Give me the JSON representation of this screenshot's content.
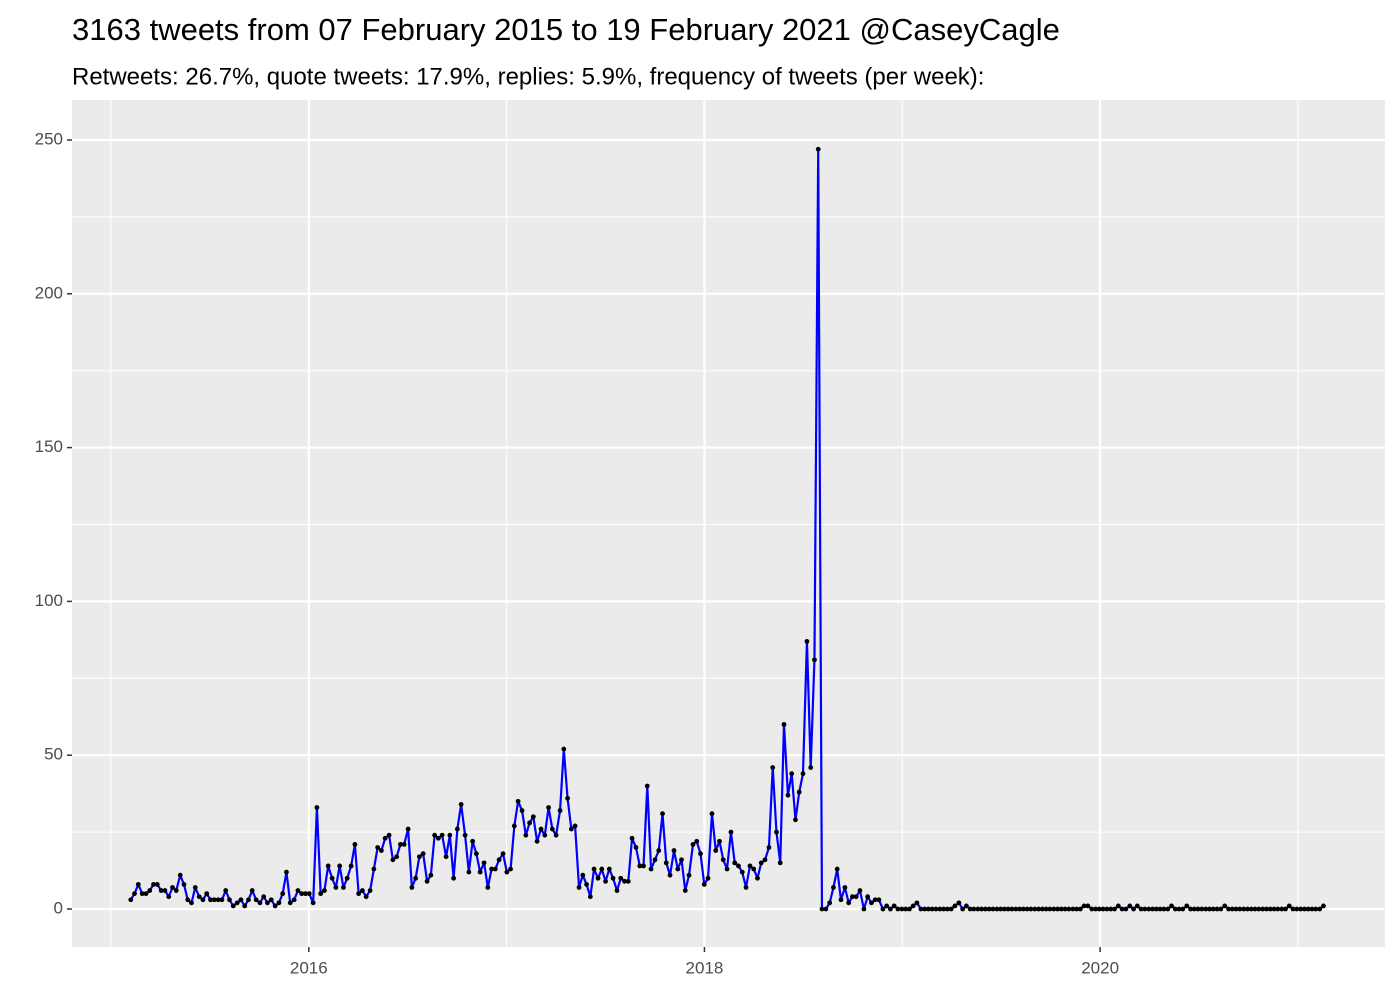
{
  "chart_data": {
    "type": "line",
    "title": "3163 tweets from 07 February 2015 to 19 February 2021 @CaseyCagle",
    "subtitle": "Retweets: 26.7%, quote tweets: 17.9%, replies: 5.9%, frequency of tweets (per week):",
    "x": [
      2015.1,
      2015.119,
      2015.138,
      2015.158,
      2015.177,
      2015.196,
      2015.215,
      2015.234,
      2015.254,
      2015.273,
      2015.292,
      2015.311,
      2015.33,
      2015.35,
      2015.369,
      2015.388,
      2015.407,
      2015.426,
      2015.446,
      2015.465,
      2015.484,
      2015.503,
      2015.522,
      2015.542,
      2015.561,
      2015.58,
      2015.599,
      2015.618,
      2015.638,
      2015.657,
      2015.676,
      2015.695,
      2015.714,
      2015.734,
      2015.753,
      2015.772,
      2015.791,
      2015.81,
      2015.83,
      2015.849,
      2015.868,
      2015.887,
      2015.906,
      2015.926,
      2015.945,
      2015.964,
      2015.983,
      2016.002,
      2016.022,
      2016.041,
      2016.06,
      2016.079,
      2016.098,
      2016.118,
      2016.137,
      2016.156,
      2016.175,
      2016.194,
      2016.214,
      2016.233,
      2016.252,
      2016.271,
      2016.29,
      2016.31,
      2016.329,
      2016.348,
      2016.367,
      2016.386,
      2016.406,
      2016.425,
      2016.444,
      2016.463,
      2016.482,
      2016.502,
      2016.521,
      2016.54,
      2016.559,
      2016.578,
      2016.598,
      2016.617,
      2016.636,
      2016.655,
      2016.674,
      2016.694,
      2016.713,
      2016.732,
      2016.751,
      2016.77,
      2016.79,
      2016.809,
      2016.828,
      2016.847,
      2016.866,
      2016.886,
      2016.905,
      2016.924,
      2016.943,
      2016.962,
      2016.982,
      2017.001,
      2017.02,
      2017.039,
      2017.058,
      2017.078,
      2017.097,
      2017.116,
      2017.135,
      2017.154,
      2017.174,
      2017.193,
      2017.212,
      2017.231,
      2017.25,
      2017.27,
      2017.289,
      2017.308,
      2017.327,
      2017.346,
      2017.366,
      2017.385,
      2017.404,
      2017.423,
      2017.442,
      2017.462,
      2017.481,
      2017.5,
      2017.519,
      2017.538,
      2017.558,
      2017.577,
      2017.596,
      2017.615,
      2017.634,
      2017.654,
      2017.673,
      2017.692,
      2017.711,
      2017.73,
      2017.75,
      2017.769,
      2017.788,
      2017.807,
      2017.826,
      2017.846,
      2017.865,
      2017.884,
      2017.903,
      2017.922,
      2017.942,
      2017.961,
      2017.98,
      2017.999,
      2018.018,
      2018.038,
      2018.057,
      2018.076,
      2018.095,
      2018.114,
      2018.134,
      2018.153,
      2018.172,
      2018.191,
      2018.21,
      2018.23,
      2018.249,
      2018.268,
      2018.287,
      2018.306,
      2018.326,
      2018.345,
      2018.364,
      2018.383,
      2018.402,
      2018.422,
      2018.441,
      2018.46,
      2018.479,
      2018.498,
      2018.518,
      2018.537,
      2018.556,
      2018.575,
      2018.594,
      2018.614,
      2018.633,
      2018.652,
      2018.671,
      2018.69,
      2018.71,
      2018.729,
      2018.748,
      2018.767,
      2018.786,
      2018.806,
      2018.825,
      2018.844,
      2018.863,
      2018.882,
      2018.902,
      2018.921,
      2018.94,
      2018.959,
      2018.978,
      2018.998,
      2019.017,
      2019.036,
      2019.055,
      2019.074,
      2019.094,
      2019.113,
      2019.132,
      2019.151,
      2019.17,
      2019.19,
      2019.209,
      2019.228,
      2019.247,
      2019.266,
      2019.286,
      2019.305,
      2019.324,
      2019.343,
      2019.362,
      2019.382,
      2019.401,
      2019.42,
      2019.439,
      2019.458,
      2019.478,
      2019.497,
      2019.516,
      2019.535,
      2019.554,
      2019.574,
      2019.593,
      2019.612,
      2019.631,
      2019.65,
      2019.67,
      2019.689,
      2019.708,
      2019.727,
      2019.746,
      2019.766,
      2019.785,
      2019.804,
      2019.823,
      2019.842,
      2019.862,
      2019.881,
      2019.9,
      2019.919,
      2019.938,
      2019.958,
      2019.977,
      2019.996,
      2020.015,
      2020.034,
      2020.054,
      2020.073,
      2020.092,
      2020.111,
      2020.13,
      2020.15,
      2020.169,
      2020.188,
      2020.207,
      2020.226,
      2020.246,
      2020.265,
      2020.284,
      2020.303,
      2020.322,
      2020.342,
      2020.361,
      2020.38,
      2020.399,
      2020.418,
      2020.438,
      2020.457,
      2020.476,
      2020.495,
      2020.514,
      2020.534,
      2020.553,
      2020.572,
      2020.591,
      2020.61,
      2020.63,
      2020.649,
      2020.668,
      2020.687,
      2020.706,
      2020.726,
      2020.745,
      2020.764,
      2020.783,
      2020.802,
      2020.822,
      2020.841,
      2020.86,
      2020.879,
      2020.898,
      2020.918,
      2020.937,
      2020.956,
      2020.975,
      2020.994,
      2021.014,
      2021.033,
      2021.052,
      2021.071,
      2021.09,
      2021.11,
      2021.129
    ],
    "series": [
      {
        "color": "#0000ff",
        "marker_color": "#000000",
        "values": [
          3,
          5,
          8,
          5,
          5,
          6,
          8,
          8,
          6,
          6,
          4,
          7,
          6,
          11,
          8,
          3,
          2,
          7,
          4,
          3,
          5,
          3,
          3,
          3,
          3,
          6,
          3,
          1,
          2,
          3,
          1,
          3,
          6,
          3,
          2,
          4,
          2,
          3,
          1,
          2,
          5,
          12,
          2,
          3,
          6,
          5,
          5,
          5,
          2,
          33,
          5,
          6,
          14,
          10,
          7,
          14,
          7,
          10,
          14,
          21,
          5,
          6,
          4,
          6,
          13,
          20,
          19,
          23,
          24,
          16,
          17,
          21,
          21,
          26,
          7,
          10,
          17,
          18,
          9,
          11,
          24,
          23,
          24,
          17,
          24,
          10,
          26,
          34,
          24,
          12,
          22,
          18,
          12,
          15,
          7,
          13,
          13,
          16,
          18,
          12,
          13,
          27,
          35,
          32,
          24,
          28,
          30,
          22,
          26,
          24,
          33,
          26,
          24,
          32,
          52,
          36,
          26,
          27,
          7,
          11,
          8,
          4,
          13,
          10,
          13,
          9,
          13,
          10,
          6,
          10,
          9,
          9,
          23,
          20,
          14,
          14,
          40,
          13,
          16,
          19,
          31,
          15,
          11,
          19,
          13,
          16,
          6,
          11,
          21,
          22,
          18,
          8,
          10,
          31,
          19,
          22,
          16,
          13,
          25,
          15,
          14,
          12,
          7,
          14,
          13,
          10,
          15,
          16,
          20,
          46,
          25,
          15,
          60,
          37,
          44,
          29,
          38,
          44,
          87,
          46,
          81,
          247,
          0,
          0,
          2,
          7,
          13,
          3,
          7,
          2,
          4,
          4,
          6,
          0,
          4,
          2,
          3,
          3,
          0,
          1,
          0,
          1,
          0,
          0,
          0,
          0,
          1,
          2,
          0,
          0,
          0,
          0,
          0,
          0,
          0,
          0,
          0,
          1,
          2,
          0,
          1,
          0,
          0,
          0,
          0,
          0,
          0,
          0,
          0,
          0,
          0,
          0,
          0,
          0,
          0,
          0,
          0,
          0,
          0,
          0,
          0,
          0,
          0,
          0,
          0,
          0,
          0,
          0,
          0,
          0,
          0,
          1,
          1,
          0,
          0,
          0,
          0,
          0,
          0,
          0,
          1,
          0,
          0,
          1,
          0,
          1,
          0,
          0,
          0,
          0,
          0,
          0,
          0,
          0,
          1,
          0,
          0,
          0,
          1,
          0,
          0,
          0,
          0,
          0,
          0,
          0,
          0,
          0,
          1,
          0,
          0,
          0,
          0,
          0,
          0,
          0,
          0,
          0,
          0,
          0,
          0,
          0,
          0,
          0,
          0,
          1,
          0,
          0,
          0,
          0,
          0,
          0,
          0,
          0,
          1
        ]
      }
    ],
    "xlim": [
      2014.803,
      2021.44
    ],
    "xticks": [
      2016,
      2018,
      2020
    ],
    "ylim": [
      -12.35,
      263
    ],
    "yticks": [
      0,
      50,
      100,
      150,
      200,
      250
    ],
    "grid": true,
    "minor_grid": true
  }
}
